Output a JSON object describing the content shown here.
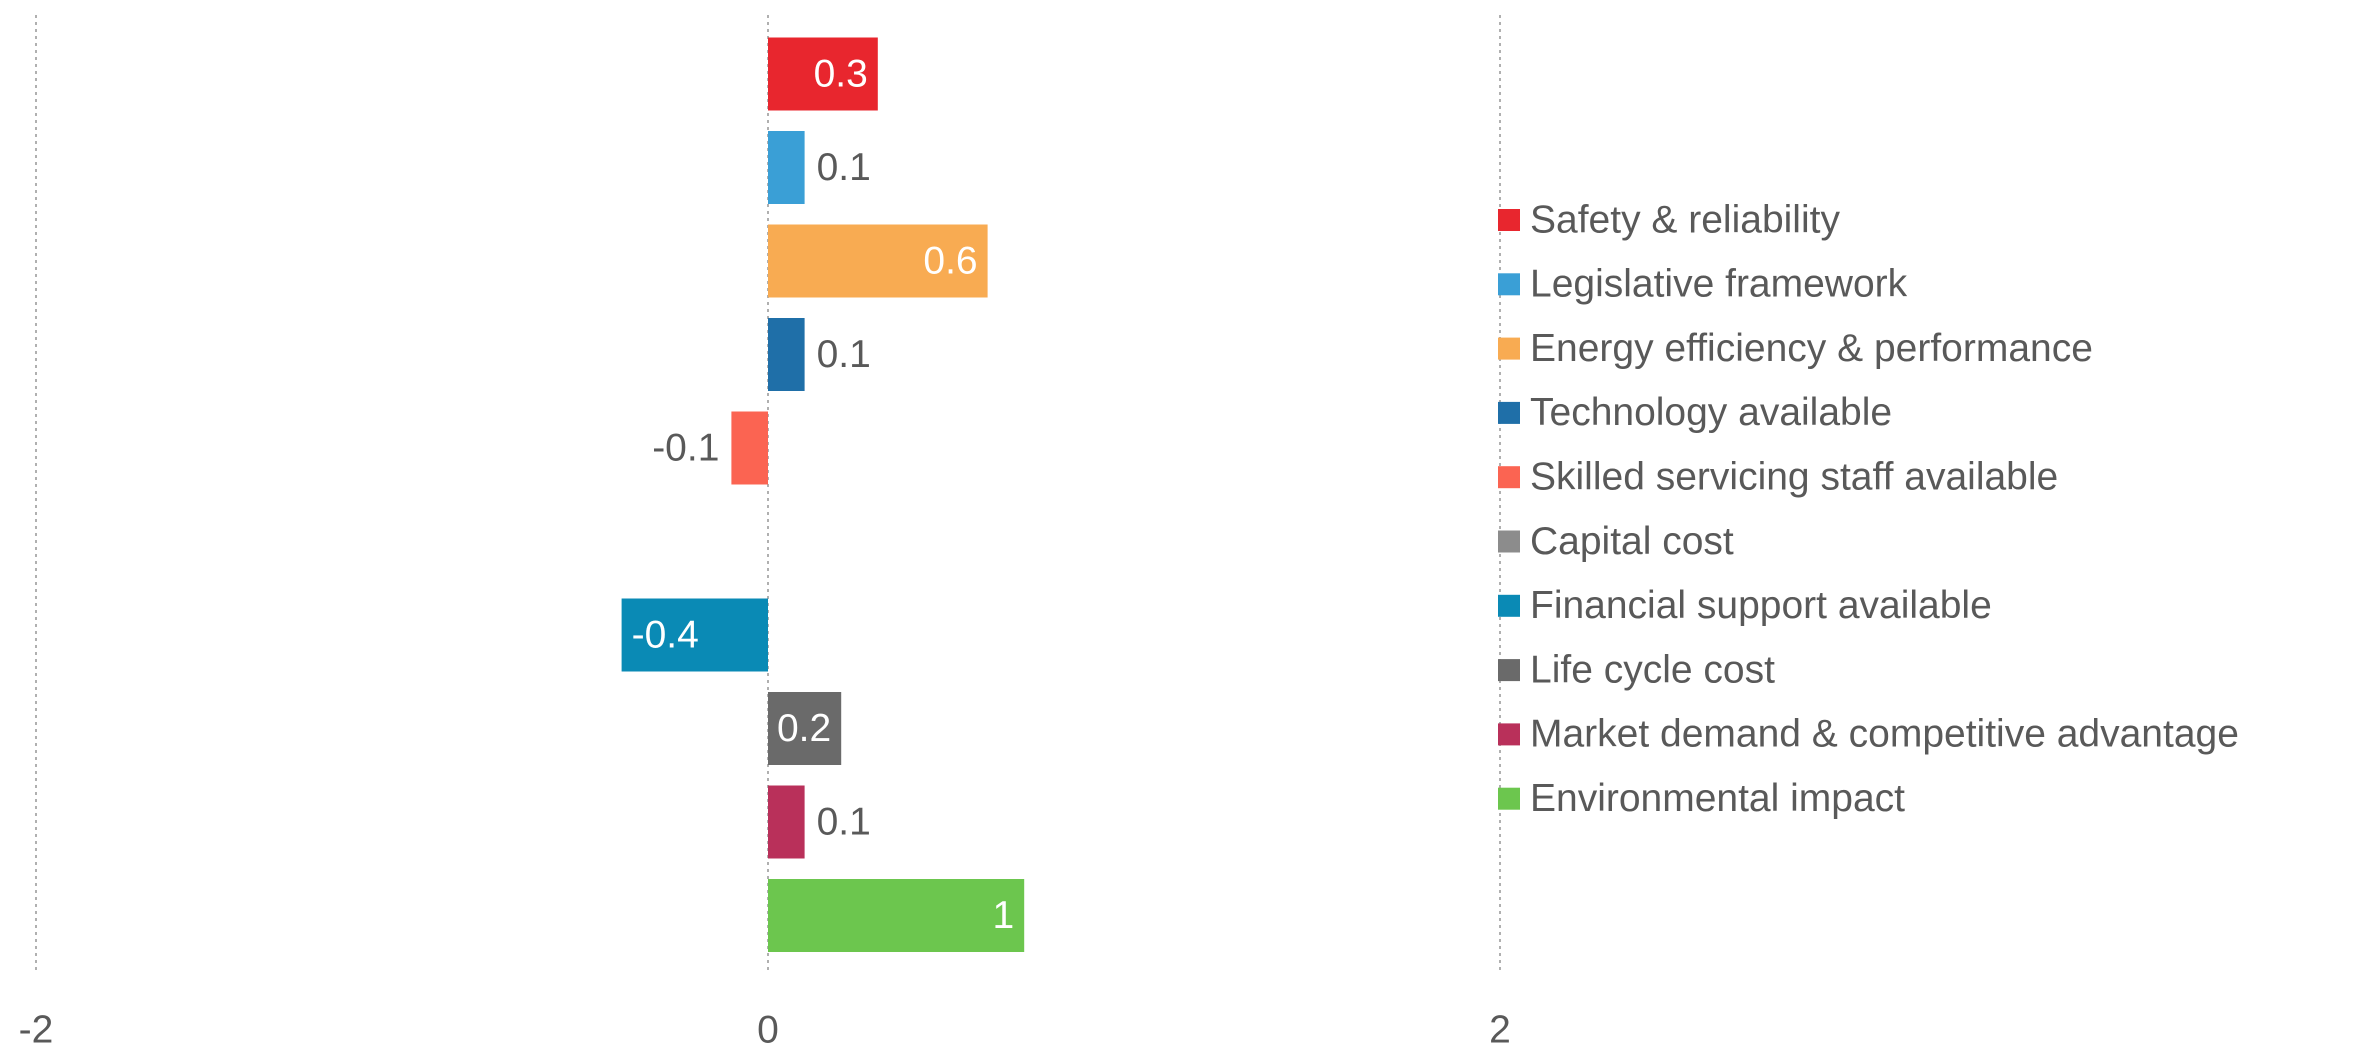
{
  "chart_data": {
    "type": "hbar",
    "categories": [
      "Safety & reliability",
      "Legislative framework",
      "Energy efficiency & performance",
      "Technology available",
      "Skilled servicing staff available",
      "Capital cost",
      "Financial support available",
      "Life cycle cost",
      "Market demand & competitive advantage",
      "Environmental impact"
    ],
    "values": [
      0.3,
      0.1,
      0.6,
      0.1,
      -0.1,
      null,
      -0.4,
      0.2,
      0.1,
      0.7
    ],
    "value_labels": [
      "0.3",
      "0.1",
      "0.6",
      "0.1",
      "-0.1",
      null,
      "-0.4",
      "0.2",
      "0.1",
      "1"
    ],
    "colors": [
      "#e8262e",
      "#3a9fd6",
      "#f8ab52",
      "#1f6fa8",
      "#fb6452",
      "#8c8c8c",
      "#0a8ab5",
      "#6a6a6a",
      "#b9305a",
      "#6cc64e"
    ],
    "xlim": [
      -2,
      2
    ],
    "xticks": [
      -2,
      0,
      2
    ],
    "grid": true,
    "legend": "right"
  }
}
